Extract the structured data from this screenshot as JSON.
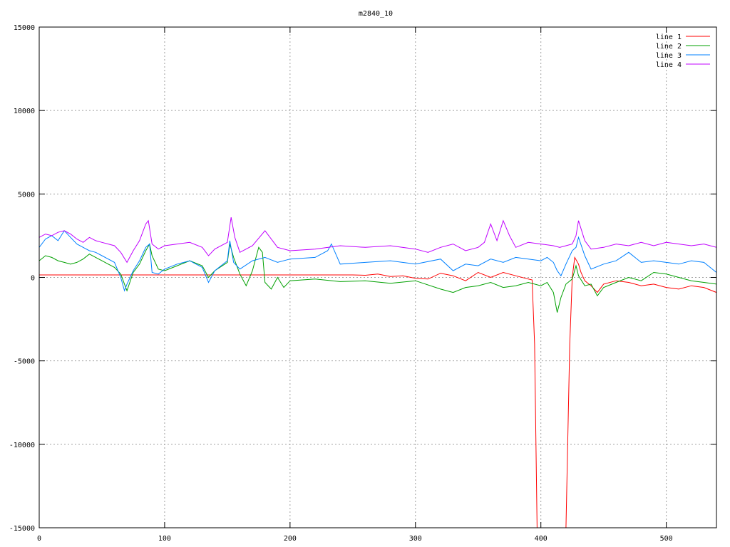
{
  "chart_data": {
    "type": "line",
    "title": "m2840_10",
    "xlabel": "",
    "ylabel": "",
    "xlim": [
      0,
      540
    ],
    "ylim": [
      -15000,
      15000
    ],
    "grid": true,
    "legend_position": "top-right",
    "x_ticks": [
      "0",
      "100",
      "200",
      "300",
      "400",
      "500"
    ],
    "x_tick_values": [
      0,
      100,
      200,
      300,
      400,
      500
    ],
    "y_ticks": [
      "15000",
      "10000",
      "5000",
      "0",
      "-5000",
      "-10000",
      "-15000"
    ],
    "y_tick_values": [
      15000,
      10000,
      5000,
      0,
      -5000,
      -10000,
      -15000
    ],
    "series": [
      {
        "name": "line 1",
        "color": "#ff0000",
        "x": [
          0,
          100,
          200,
          250,
          260,
          270,
          280,
          290,
          300,
          310,
          320,
          330,
          340,
          350,
          360,
          370,
          380,
          390,
          393,
          395,
          397,
          420,
          423,
          425,
          427,
          430,
          432,
          435,
          440,
          445,
          450,
          460,
          470,
          480,
          490,
          500,
          510,
          520,
          530,
          540
        ],
        "y": [
          150,
          150,
          150,
          150,
          130,
          200,
          50,
          100,
          -50,
          -100,
          250,
          100,
          -200,
          300,
          0,
          300,
          100,
          -100,
          -150,
          -4000,
          -15000,
          -15000,
          -4000,
          0,
          1200,
          800,
          300,
          -200,
          -500,
          -900,
          -400,
          -200,
          -300,
          -500,
          -400,
          -600,
          -700,
          -500,
          -600,
          -900
        ]
      },
      {
        "name": "line 2",
        "color": "#00a000",
        "x": [
          0,
          5,
          10,
          15,
          20,
          25,
          30,
          35,
          40,
          45,
          50,
          55,
          60,
          65,
          68,
          70,
          75,
          80,
          85,
          88,
          90,
          95,
          100,
          110,
          120,
          130,
          135,
          140,
          150,
          152,
          155,
          160,
          165,
          170,
          175,
          178,
          180,
          185,
          190,
          195,
          200,
          220,
          240,
          260,
          280,
          300,
          320,
          330,
          340,
          350,
          360,
          370,
          380,
          390,
          400,
          405,
          410,
          413,
          416,
          420,
          425,
          428,
          430,
          435,
          440,
          445,
          450,
          460,
          470,
          480,
          490,
          500,
          510,
          520,
          530,
          540
        ],
        "y": [
          1000,
          1300,
          1200,
          1000,
          900,
          800,
          900,
          1100,
          1400,
          1200,
          1000,
          800,
          600,
          200,
          -400,
          -800,
          300,
          800,
          1600,
          2000,
          1300,
          500,
          400,
          700,
          1000,
          700,
          0,
          400,
          900,
          2000,
          1200,
          200,
          -500,
          400,
          1800,
          1500,
          -300,
          -700,
          0,
          -600,
          -200,
          -100,
          -250,
          -200,
          -350,
          -200,
          -700,
          -900,
          -600,
          -500,
          -300,
          -600,
          -500,
          -300,
          -500,
          -300,
          -900,
          -2100,
          -1200,
          -400,
          -100,
          700,
          100,
          -500,
          -400,
          -1100,
          -600,
          -300,
          0,
          -200,
          300,
          200,
          0,
          -200,
          -300,
          -400
        ]
      },
      {
        "name": "line 3",
        "color": "#0080ff",
        "x": [
          0,
          5,
          10,
          15,
          20,
          25,
          30,
          35,
          40,
          45,
          50,
          55,
          60,
          65,
          68,
          70,
          75,
          80,
          85,
          88,
          90,
          95,
          100,
          110,
          120,
          130,
          135,
          140,
          150,
          152,
          155,
          160,
          170,
          180,
          190,
          200,
          220,
          230,
          233,
          240,
          260,
          280,
          300,
          320,
          330,
          340,
          350,
          360,
          370,
          380,
          390,
          400,
          405,
          410,
          413,
          416,
          420,
          425,
          428,
          430,
          435,
          440,
          450,
          460,
          470,
          480,
          490,
          500,
          510,
          520,
          530,
          540
        ],
        "y": [
          1800,
          2300,
          2500,
          2200,
          2800,
          2400,
          2000,
          1800,
          1600,
          1500,
          1300,
          1100,
          900,
          0,
          -800,
          -400,
          400,
          1000,
          1800,
          2000,
          300,
          200,
          500,
          800,
          1000,
          600,
          -300,
          400,
          1000,
          2200,
          900,
          500,
          1000,
          1200,
          900,
          1100,
          1200,
          1600,
          2000,
          800,
          900,
          1000,
          800,
          1100,
          400,
          800,
          700,
          1100,
          900,
          1200,
          1100,
          1000,
          1200,
          900,
          400,
          100,
          800,
          1600,
          1800,
          2400,
          1300,
          500,
          800,
          1000,
          1500,
          900,
          1000,
          900,
          800,
          1000,
          900,
          300
        ]
      },
      {
        "name": "line 4",
        "color": "#c000ff",
        "x": [
          0,
          5,
          10,
          15,
          20,
          25,
          30,
          35,
          40,
          45,
          50,
          55,
          60,
          65,
          70,
          75,
          80,
          85,
          87,
          90,
          95,
          100,
          110,
          120,
          130,
          135,
          140,
          150,
          153,
          156,
          160,
          170,
          180,
          190,
          200,
          220,
          240,
          260,
          280,
          300,
          310,
          320,
          330,
          340,
          350,
          355,
          360,
          365,
          370,
          375,
          380,
          390,
          400,
          410,
          415,
          420,
          425,
          428,
          430,
          435,
          440,
          450,
          460,
          470,
          480,
          490,
          500,
          510,
          520,
          530,
          540
        ],
        "y": [
          2400,
          2600,
          2500,
          2700,
          2800,
          2600,
          2300,
          2100,
          2400,
          2200,
          2100,
          2000,
          1900,
          1500,
          900,
          1600,
          2200,
          3200,
          3400,
          2000,
          1700,
          1900,
          2000,
          2100,
          1800,
          1300,
          1700,
          2100,
          3600,
          2400,
          1500,
          1900,
          2800,
          1800,
          1600,
          1700,
          1900,
          1800,
          1900,
          1700,
          1500,
          1800,
          2000,
          1600,
          1800,
          2100,
          3200,
          2200,
          3400,
          2500,
          1800,
          2100,
          2000,
          1900,
          1800,
          1900,
          2000,
          2500,
          3400,
          2200,
          1700,
          1800,
          2000,
          1900,
          2100,
          1900,
          2100,
          2000,
          1900,
          2000,
          1800
        ]
      }
    ]
  }
}
